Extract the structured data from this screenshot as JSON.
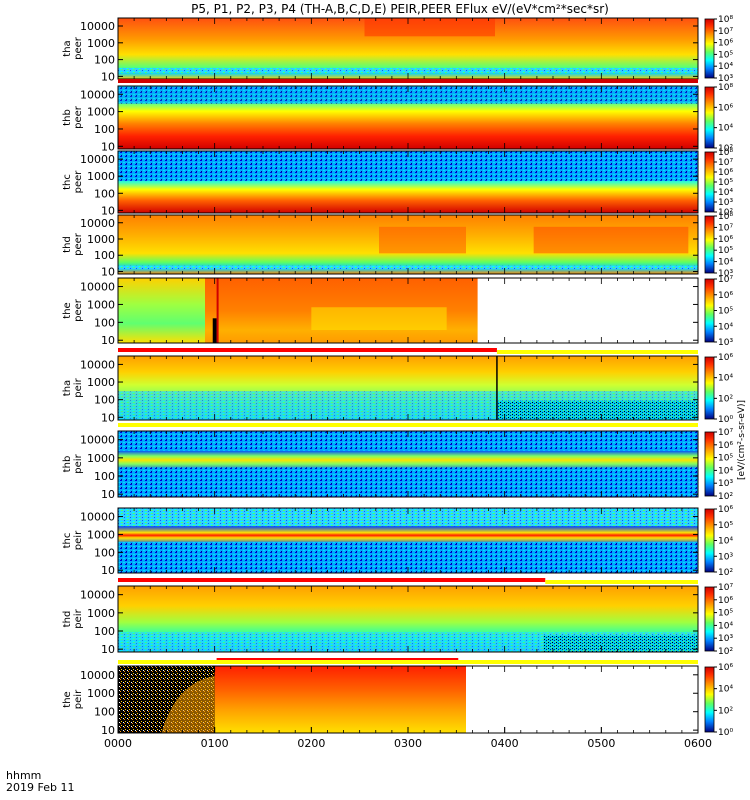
{
  "chart_data": {
    "type": "heatmap",
    "title": "P5, P1, P2, P3, P4 (TH-A,B,C,D,E) PEIR,PEER EFlux eV/(eV*cm²*sec*sr)",
    "x_label_corner": "hhmm",
    "date_label": "2019 Feb 11",
    "x_ticks": [
      "0000",
      "0100",
      "0200",
      "0300",
      "0400",
      "0500",
      "0600"
    ],
    "x_range_hours": [
      0,
      6
    ],
    "y_scale": "log",
    "y_range": [
      7,
      30000
    ],
    "y_ticks": [
      "10",
      "100",
      "1000",
      "10000"
    ],
    "colorscale": [
      "#000080",
      "#0000ff",
      "#00a0ff",
      "#00ffff",
      "#60ff60",
      "#ffff00",
      "#ffa000",
      "#ff3000",
      "#d00000"
    ],
    "colorbar_label": "[eV/(cm²-s-sr-eV)]",
    "panels": [
      {
        "probe": "tha",
        "species": "peer",
        "ylabel": "tha\npeer",
        "data_end_hour": 6.0,
        "colorbar_ticks": [
          "10⁸",
          "10⁷",
          "10⁶",
          "10⁵",
          "10⁴",
          "10³"
        ],
        "colorbar_range_exp": [
          3,
          8
        ]
      },
      {
        "probe": "thb",
        "species": "peer",
        "ylabel": "thb\npeer",
        "data_end_hour": 6.0,
        "colorbar_ticks": [
          "10⁸",
          "10⁶",
          "10⁴",
          "10²"
        ],
        "colorbar_range_exp": [
          2,
          8
        ]
      },
      {
        "probe": "thc",
        "species": "peer",
        "ylabel": "thc\npeer",
        "data_end_hour": 6.0,
        "colorbar_ticks": [
          "10⁸",
          "10⁷",
          "10⁶",
          "10⁵",
          "10⁴",
          "10³",
          "10²"
        ],
        "colorbar_range_exp": [
          2,
          8
        ]
      },
      {
        "probe": "thd",
        "species": "peer",
        "ylabel": "thd\npeer",
        "data_end_hour": 6.0,
        "colorbar_ticks": [
          "10⁸",
          "10⁷",
          "10⁶",
          "10⁵",
          "10⁴",
          "10³"
        ],
        "colorbar_range_exp": [
          3,
          8
        ]
      },
      {
        "probe": "the",
        "species": "peer",
        "ylabel": "the\npeer",
        "data_end_hour": 3.72,
        "colorbar_ticks": [
          "10⁷",
          "10⁶",
          "10⁵",
          "10⁴",
          "10³"
        ],
        "colorbar_range_exp": [
          3,
          7
        ]
      },
      {
        "probe": "tha",
        "species": "peir",
        "ylabel": "tha\npeir",
        "data_end_hour": 6.0,
        "colorbar_ticks": [
          "10⁶",
          "10⁴",
          "10²",
          "10⁰"
        ],
        "colorbar_range_exp": [
          0,
          6
        ]
      },
      {
        "probe": "thb",
        "species": "peir",
        "ylabel": "thb\npeir",
        "data_end_hour": 6.0,
        "colorbar_ticks": [
          "10⁷",
          "10⁶",
          "10⁵",
          "10⁴",
          "10³",
          "10²"
        ],
        "colorbar_range_exp": [
          2,
          7
        ]
      },
      {
        "probe": "thc",
        "species": "peir",
        "ylabel": "thc\npeir",
        "data_end_hour": 6.0,
        "colorbar_ticks": [
          "10⁶",
          "10⁵",
          "10⁴",
          "10³",
          "10²"
        ],
        "colorbar_range_exp": [
          2,
          6
        ]
      },
      {
        "probe": "thd",
        "species": "peir",
        "ylabel": "thd\npeir",
        "data_end_hour": 6.0,
        "colorbar_ticks": [
          "10⁷",
          "10⁶",
          "10⁵",
          "10⁴",
          "10³",
          "10²"
        ],
        "colorbar_range_exp": [
          2,
          7
        ]
      },
      {
        "probe": "the",
        "species": "peir",
        "ylabel": "the\npeir",
        "data_end_hour": 3.6,
        "colorbar_ticks": [
          "10⁶",
          "10⁴",
          "10²",
          "10⁰"
        ],
        "colorbar_range_exp": [
          0,
          6
        ]
      }
    ]
  }
}
